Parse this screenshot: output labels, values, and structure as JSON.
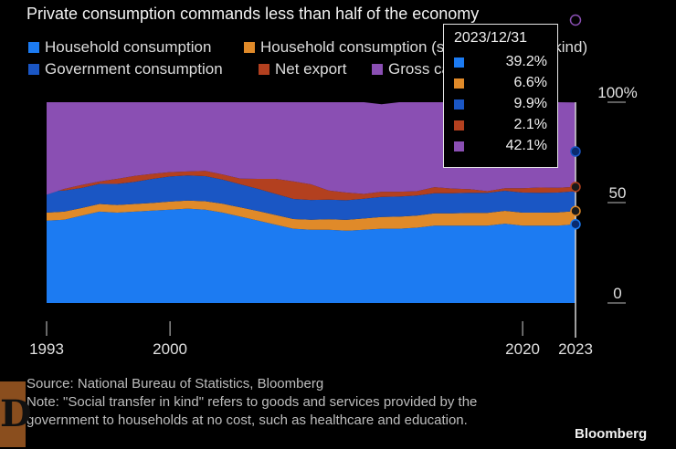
{
  "title": "Private consumption commands less than half of the economy",
  "legend": [
    {
      "label": "Household consumption",
      "color": "#1c7bf2"
    },
    {
      "label": "Household consumption (social transfer in kind)",
      "color": "#e08a29"
    },
    {
      "label": "Government consumption",
      "color": "#1a56c4"
    },
    {
      "label": "Net export",
      "color": "#b3401f"
    },
    {
      "label": "Gross capital formation",
      "color": "#8a4fb3"
    }
  ],
  "tooltip": {
    "date": "2023/12/31",
    "rows": [
      {
        "color": "#1c7bf2",
        "value": "39.2%"
      },
      {
        "color": "#e08a29",
        "value": "6.6%"
      },
      {
        "color": "#1a56c4",
        "value": "9.9%"
      },
      {
        "color": "#b3401f",
        "value": "2.1%"
      },
      {
        "color": "#8a4fb3",
        "value": "42.1%"
      }
    ]
  },
  "footer": {
    "source": "Source: National Bureau of Statistics, Bloomberg",
    "note": "Note: \"Social transfer in kind\" refers to goods and services provided by the government to households at no cost, such as healthcare and education."
  },
  "brand": "Bloomberg",
  "chart_data": {
    "type": "area",
    "stacked": true,
    "x": [
      1993,
      1994,
      1995,
      1996,
      1997,
      1998,
      1999,
      2000,
      2001,
      2002,
      2003,
      2004,
      2005,
      2006,
      2007,
      2008,
      2009,
      2010,
      2011,
      2012,
      2013,
      2014,
      2015,
      2016,
      2017,
      2018,
      2019,
      2020,
      2021,
      2022,
      2023
    ],
    "series": [
      {
        "name": "Household consumption",
        "color": "#1c7bf2",
        "values": [
          41.0,
          41.5,
          43.5,
          45.5,
          45.0,
          45.5,
          46.0,
          46.5,
          47.0,
          46.5,
          45.0,
          43.0,
          41.0,
          39.0,
          37.0,
          36.5,
          36.5,
          36.0,
          36.5,
          37.0,
          37.0,
          37.5,
          38.5,
          38.5,
          38.5,
          38.5,
          39.5,
          38.5,
          38.5,
          38.5,
          39.2
        ]
      },
      {
        "name": "Household consumption (social transfer in kind)",
        "color": "#e08a29",
        "values": [
          4.0,
          4.0,
          3.8,
          3.8,
          3.8,
          3.8,
          3.8,
          4.0,
          4.0,
          4.2,
          4.4,
          4.6,
          4.8,
          4.8,
          4.8,
          5.0,
          5.2,
          5.4,
          5.6,
          5.8,
          6.0,
          6.0,
          6.2,
          6.2,
          6.4,
          6.4,
          6.4,
          6.5,
          6.5,
          6.6,
          6.6
        ]
      },
      {
        "name": "Government consumption",
        "color": "#1a56c4",
        "values": [
          10.5,
          10.5,
          10.0,
          10.0,
          10.5,
          11.0,
          12.0,
          12.5,
          12.5,
          12.5,
          12.0,
          11.5,
          11.0,
          10.5,
          10.0,
          9.8,
          9.8,
          9.8,
          9.8,
          10.0,
          10.0,
          10.0,
          10.0,
          10.0,
          10.0,
          10.0,
          10.0,
          10.0,
          9.9,
          9.9,
          9.9
        ]
      },
      {
        "name": "Net export",
        "color": "#b3401f",
        "values": [
          -1.5,
          0.8,
          1.5,
          1.2,
          2.5,
          3.0,
          2.5,
          2.2,
          2.0,
          2.6,
          2.6,
          2.8,
          5.0,
          7.5,
          8.8,
          7.8,
          4.5,
          3.8,
          2.4,
          2.6,
          2.4,
          2.2,
          3.0,
          2.3,
          1.8,
          0.8,
          1.3,
          2.2,
          2.6,
          2.4,
          2.1
        ]
      },
      {
        "name": "Gross capital formation",
        "color": "#8a4fb3",
        "values": [
          46.0,
          43.2,
          41.2,
          39.5,
          38.2,
          36.7,
          35.7,
          34.8,
          34.5,
          34.2,
          36.0,
          38.1,
          38.2,
          38.2,
          39.4,
          40.9,
          44.0,
          45.0,
          45.7,
          43.6,
          44.6,
          44.3,
          42.3,
          43.0,
          43.3,
          44.3,
          42.8,
          42.8,
          42.5,
          42.6,
          42.1
        ]
      }
    ],
    "xticks": [
      "1993",
      "2000",
      "2020",
      "2023"
    ],
    "yticks": [
      "0",
      "50",
      "100%"
    ],
    "ylim": [
      0,
      100
    ]
  }
}
